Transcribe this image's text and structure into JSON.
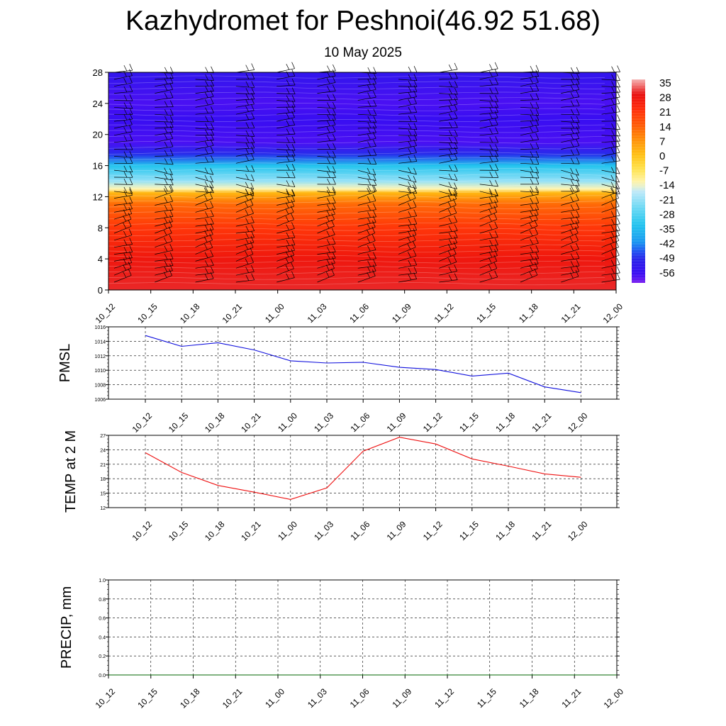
{
  "title": "Kazhydromet for Peshnoi(46.92 51.68)",
  "subtitle": "10 May 2025",
  "colors": {
    "pmsl_line": "#1010dd",
    "temp_line": "#ee1111",
    "precip_line": "#006400",
    "barb": "#000000"
  },
  "chart_data": [
    {
      "type": "heatmap",
      "title": "",
      "x_ticks": [
        "10_12",
        "10_15",
        "10_18",
        "10_21",
        "11_00",
        "11_03",
        "11_06",
        "11_09",
        "11_12",
        "11_15",
        "11_18",
        "11_21",
        "12_00"
      ],
      "y_ticks": [
        0,
        4,
        8,
        12,
        16,
        20,
        24,
        28
      ],
      "ylim": [
        0,
        28
      ],
      "colorbar_labels": [
        "35",
        "28",
        "21",
        "14",
        "7",
        "0",
        "-7",
        "-14",
        "-21",
        "-28",
        "-35",
        "-42",
        "-49",
        "-56"
      ],
      "colorbar_range": [
        -60,
        38
      ],
      "temperature_by_level": [
        {
          "level": 0,
          "value": 32
        },
        {
          "level": 4,
          "value": 29
        },
        {
          "level": 8,
          "value": 22
        },
        {
          "level": 11,
          "value": 14
        },
        {
          "level": 12.5,
          "value": 3
        },
        {
          "level": 13,
          "value": -12
        },
        {
          "level": 14,
          "value": -20
        },
        {
          "level": 16,
          "value": -32
        },
        {
          "level": 17.5,
          "value": -48
        },
        {
          "level": 19,
          "value": -57
        },
        {
          "level": 22,
          "value": -55
        },
        {
          "level": 24,
          "value": -57
        },
        {
          "level": 28,
          "value": -52
        }
      ],
      "wind_barbs": "shown"
    },
    {
      "type": "line",
      "ylabel": "PMSL",
      "categories": [
        "10_12",
        "10_15",
        "10_18",
        "10_21",
        "11_00",
        "11_03",
        "11_06",
        "11_09",
        "11_12",
        "11_15",
        "11_18",
        "11_21",
        "12_00"
      ],
      "y_ticks": [
        1006,
        1008,
        1010,
        1012,
        1014,
        1016
      ],
      "ylim": [
        1006,
        1016
      ],
      "grid": true,
      "series": [
        {
          "values": [
            1014.8,
            1013.3,
            1013.8,
            1012.8,
            1011.3,
            1011.0,
            1011.1,
            1010.4,
            1010.1,
            1009.2,
            1009.6,
            1007.7,
            1006.9
          ]
        }
      ]
    },
    {
      "type": "line",
      "ylabel": "TEMP at 2 M",
      "categories": [
        "10_12",
        "10_15",
        "10_18",
        "10_21",
        "11_00",
        "11_03",
        "11_06",
        "11_09",
        "11_12",
        "11_15",
        "11_18",
        "11_21",
        "12_00"
      ],
      "y_ticks": [
        12,
        15,
        18,
        21,
        24,
        27
      ],
      "ylim": [
        12,
        27
      ],
      "grid": true,
      "series": [
        {
          "values": [
            23.4,
            19.3,
            16.6,
            15.2,
            13.7,
            16.1,
            23.7,
            26.6,
            25.2,
            22.1,
            20.6,
            19.0,
            18.3
          ]
        }
      ]
    },
    {
      "type": "line",
      "ylabel": "PRECIP, mm",
      "categories": [
        "10_12",
        "10_15",
        "10_18",
        "10_21",
        "11_00",
        "11_03",
        "11_06",
        "11_09",
        "11_12",
        "11_15",
        "11_18",
        "11_21",
        "12_00"
      ],
      "y_ticks": [
        "0.0",
        "0.2",
        "0.4",
        "0.6",
        "0.8",
        "1.0"
      ],
      "ylim": [
        0,
        1
      ],
      "grid": true,
      "series": [
        {
          "values": [
            0,
            0,
            0,
            0,
            0,
            0,
            0,
            0,
            0,
            0,
            0,
            0,
            0
          ]
        }
      ]
    }
  ]
}
